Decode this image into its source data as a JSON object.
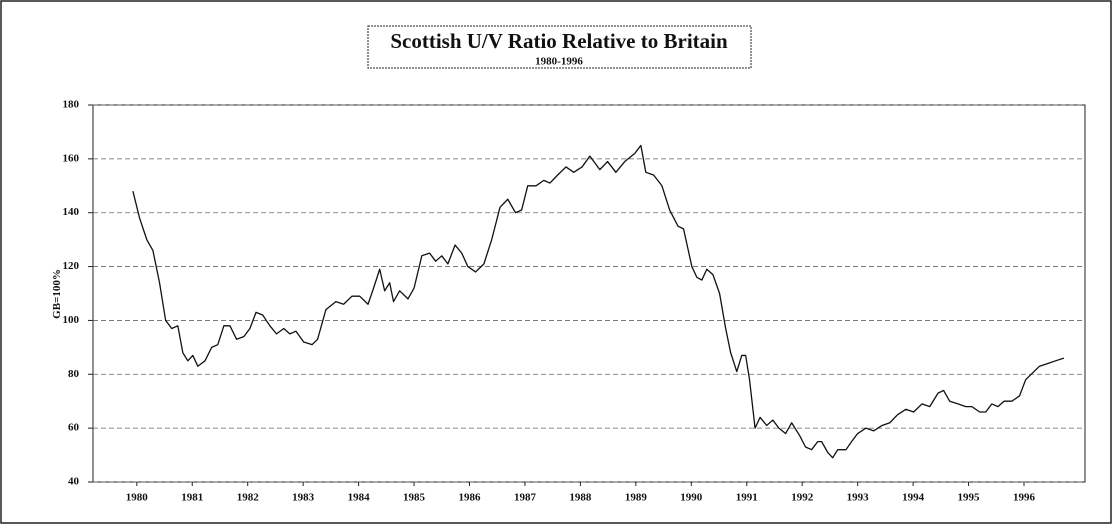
{
  "chart_data": {
    "type": "line",
    "title": "Scottish U/V Ratio Relative to Britain",
    "subtitle": "1980-1996",
    "y_label": "GB=100%",
    "xlim": [
      1979.21,
      1997.1
    ],
    "xticks": [
      1980,
      1981,
      1982,
      1983,
      1984,
      1985,
      1986,
      1987,
      1988,
      1989,
      1990,
      1991,
      1992,
      1993,
      1994,
      1995,
      1996
    ],
    "ylim": [
      40,
      180
    ],
    "yticks": [
      40,
      60,
      80,
      100,
      120,
      140,
      160,
      180
    ],
    "grid": true,
    "x": [
      1979.93,
      1980.05,
      1980.18,
      1980.29,
      1980.41,
      1980.52,
      1980.63,
      1980.74,
      1980.83,
      1980.92,
      1981.01,
      1981.1,
      1981.23,
      1981.35,
      1981.46,
      1981.57,
      1981.68,
      1981.8,
      1981.93,
      1982.04,
      1982.15,
      1982.27,
      1982.4,
      1982.52,
      1982.65,
      1982.76,
      1982.87,
      1983.01,
      1983.16,
      1983.26,
      1983.41,
      1983.59,
      1983.73,
      1983.88,
      1984.02,
      1984.17,
      1984.27,
      1984.38,
      1984.47,
      1984.56,
      1984.63,
      1984.74,
      1984.89,
      1985.0,
      1985.14,
      1985.28,
      1985.39,
      1985.5,
      1985.61,
      1985.74,
      1985.86,
      1985.97,
      1986.11,
      1986.26,
      1986.4,
      1986.55,
      1986.69,
      1986.83,
      1986.94,
      1987.05,
      1987.2,
      1987.34,
      1987.45,
      1987.59,
      1987.74,
      1987.88,
      1988.03,
      1988.17,
      1988.35,
      1988.49,
      1988.64,
      1988.8,
      1988.98,
      1989.09,
      1989.18,
      1989.32,
      1989.47,
      1989.61,
      1989.76,
      1989.86,
      1990.01,
      1990.1,
      1990.19,
      1990.28,
      1990.39,
      1990.51,
      1990.62,
      1990.71,
      1990.82,
      1990.91,
      1990.98,
      1991.05,
      1991.15,
      1991.24,
      1991.36,
      1991.47,
      1991.58,
      1991.7,
      1991.81,
      1991.96,
      1992.06,
      1992.17,
      1992.28,
      1992.35,
      1992.46,
      1992.55,
      1992.64,
      1992.79,
      1992.89,
      1993.0,
      1993.15,
      1993.29,
      1993.44,
      1993.58,
      1993.72,
      1993.87,
      1994.01,
      1994.16,
      1994.3,
      1994.45,
      1994.55,
      1994.66,
      1994.81,
      1994.95,
      1995.06,
      1995.2,
      1995.31,
      1995.42,
      1995.53,
      1995.64,
      1995.78,
      1995.92,
      1996.03,
      1996.18,
      1996.28,
      1996.43,
      1996.57,
      1996.72
    ],
    "series": [
      {
        "color": "#111111",
        "values": [
          148,
          138,
          130,
          126,
          114,
          100,
          97,
          98,
          88,
          85,
          87,
          83,
          85,
          90,
          91,
          98,
          98,
          93,
          94,
          97,
          103,
          102,
          98,
          95,
          97,
          95,
          96,
          92,
          91,
          93,
          104,
          107,
          106,
          109,
          109,
          106,
          112,
          119,
          111,
          114,
          107,
          111,
          108,
          112,
          124,
          125,
          122,
          124,
          121,
          128,
          125,
          120,
          118,
          121,
          130,
          142,
          145,
          140,
          141,
          150,
          150,
          152,
          151,
          154,
          157,
          155,
          157,
          161,
          156,
          159,
          155,
          159,
          162,
          165,
          155,
          154,
          150,
          141,
          135,
          134,
          120,
          116,
          115,
          119,
          117,
          110,
          97,
          88,
          81,
          87,
          87,
          78,
          60,
          64,
          61,
          63,
          60,
          58,
          62,
          57,
          53,
          52,
          55,
          55,
          51,
          49,
          52,
          52,
          55,
          58,
          60,
          59,
          61,
          62,
          65,
          67,
          66,
          69,
          68,
          73,
          74,
          70,
          69,
          68,
          68,
          66,
          66,
          69,
          68,
          70,
          70,
          72,
          78,
          81,
          83,
          84,
          85,
          86
        ]
      }
    ]
  }
}
